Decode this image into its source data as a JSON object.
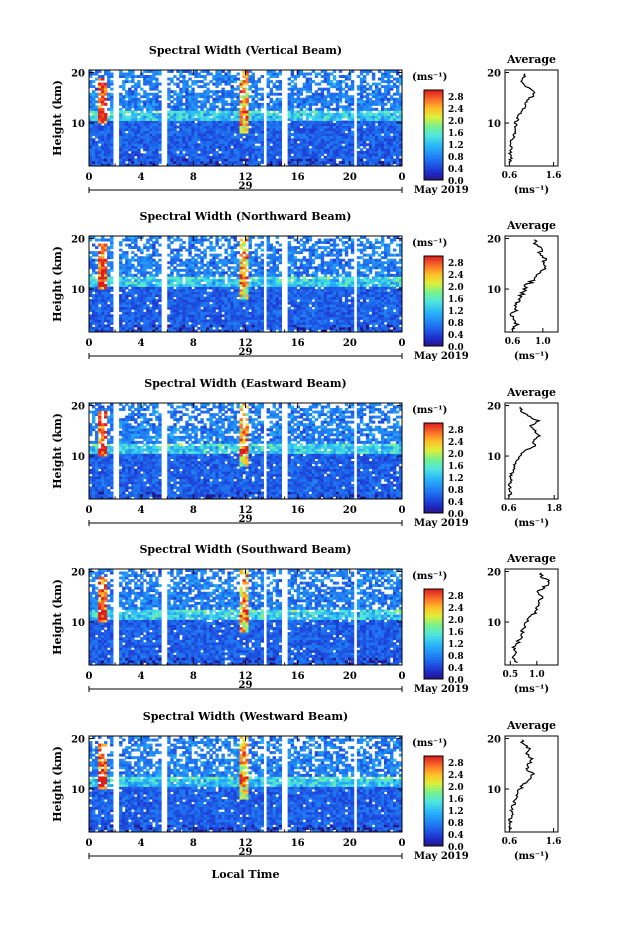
{
  "figure": {
    "xaxis_title": "Local Time",
    "date_label": "May 2019",
    "colorbar_unit": "(ms⁻¹)",
    "average_title": "Average",
    "average_xlabel": "(ms⁻¹)",
    "height_label": "Height (km)"
  },
  "chart_data": [
    {
      "type": "heatmap",
      "title": "Spectral Width (Vertical Beam)",
      "ylabel": "Height (km)",
      "xlabel": "Local Time",
      "x_ticks": [
        "0",
        "4",
        "8",
        "12",
        "16",
        "20",
        "0"
      ],
      "x_range_hours": [
        0,
        24
      ],
      "y_ticks": [
        "10",
        "20"
      ],
      "ylim_km": [
        1.5,
        20.5
      ],
      "day_label": "29",
      "colorbar": {
        "unit": "(ms⁻¹)",
        "ticks": [
          "0.0",
          "0.4",
          "0.8",
          "1.2",
          "1.6",
          "2.0",
          "2.4",
          "2.8"
        ],
        "range": [
          0,
          3.0
        ]
      },
      "data_gaps_hours": [
        [
          1.8,
          2.2
        ],
        [
          5.6,
          5.9
        ],
        [
          13.3,
          13.6
        ],
        [
          14.8,
          15.2
        ],
        [
          20.2,
          20.5
        ]
      ],
      "average_profile": {
        "title": "Average",
        "xlabel": "(ms⁻¹)",
        "x_ticks": [
          "0.6",
          "1.6"
        ],
        "xlim": [
          0.5,
          1.7
        ],
        "y_ticks": [
          "10",
          "20"
        ],
        "heights_km": [
          2,
          3,
          4,
          5,
          6,
          7,
          8,
          9,
          10,
          11,
          12,
          13,
          14,
          15,
          16,
          17,
          18,
          19
        ],
        "values": [
          0.62,
          0.64,
          0.62,
          0.66,
          0.64,
          0.68,
          0.7,
          0.72,
          0.74,
          0.78,
          0.86,
          0.92,
          0.98,
          1.08,
          1.2,
          1.0,
          0.88,
          0.92
        ]
      }
    },
    {
      "type": "heatmap",
      "title": "Spectral Width (Northward Beam)",
      "ylabel": "Height (km)",
      "xlabel": "Local Time",
      "x_ticks": [
        "0",
        "4",
        "8",
        "12",
        "16",
        "20",
        "0"
      ],
      "x_range_hours": [
        0,
        24
      ],
      "y_ticks": [
        "10",
        "20"
      ],
      "ylim_km": [
        1.5,
        20.5
      ],
      "day_label": "29",
      "colorbar": {
        "unit": "(ms⁻¹)",
        "ticks": [
          "0.0",
          "0.4",
          "0.8",
          "1.2",
          "1.6",
          "2.0",
          "2.4",
          "2.8"
        ],
        "range": [
          0,
          3.0
        ]
      },
      "data_gaps_hours": [
        [
          1.8,
          2.2
        ],
        [
          5.6,
          5.9
        ],
        [
          13.3,
          13.6
        ],
        [
          14.8,
          15.2
        ],
        [
          20.2,
          20.5
        ]
      ],
      "average_profile": {
        "title": "Average",
        "xlabel": "(ms⁻¹)",
        "x_ticks": [
          "0.6",
          "1.0"
        ],
        "xlim": [
          0.5,
          1.2
        ],
        "y_ticks": [
          "10",
          "20"
        ],
        "heights_km": [
          2,
          3,
          4,
          5,
          6,
          7,
          8,
          9,
          10,
          11,
          12,
          13,
          14,
          15,
          16,
          17,
          18,
          19
        ],
        "values": [
          0.62,
          0.66,
          0.64,
          0.6,
          0.64,
          0.66,
          0.7,
          0.72,
          0.76,
          0.8,
          0.9,
          0.96,
          1.02,
          0.98,
          1.05,
          0.96,
          1.0,
          0.92
        ]
      }
    },
    {
      "type": "heatmap",
      "title": "Spectral Width (Eastward Beam)",
      "ylabel": "Height (km)",
      "xlabel": "Local Time",
      "x_ticks": [
        "0",
        "4",
        "8",
        "12",
        "16",
        "20",
        "0"
      ],
      "x_range_hours": [
        0,
        24
      ],
      "y_ticks": [
        "10",
        "20"
      ],
      "ylim_km": [
        1.5,
        20.5
      ],
      "day_label": "29",
      "colorbar": {
        "unit": "(ms⁻¹)",
        "ticks": [
          "0.0",
          "0.4",
          "0.8",
          "1.2",
          "1.6",
          "2.0",
          "2.4",
          "2.8"
        ],
        "range": [
          0,
          3.0
        ]
      },
      "data_gaps_hours": [
        [
          1.8,
          2.2
        ],
        [
          5.6,
          5.9
        ],
        [
          13.3,
          13.6
        ],
        [
          14.8,
          15.2
        ],
        [
          20.2,
          20.5
        ]
      ],
      "average_profile": {
        "title": "Average",
        "xlabel": "(ms⁻¹)",
        "x_ticks": [
          "0.6",
          "1.8"
        ],
        "xlim": [
          0.5,
          1.9
        ],
        "y_ticks": [
          "10",
          "20"
        ],
        "heights_km": [
          2,
          3,
          4,
          5,
          6,
          7,
          8,
          9,
          10,
          11,
          12,
          13,
          14,
          15,
          16,
          17,
          18,
          19
        ],
        "values": [
          0.62,
          0.66,
          0.62,
          0.64,
          0.66,
          0.7,
          0.74,
          0.8,
          0.9,
          1.0,
          1.3,
          1.25,
          1.4,
          1.3,
          1.2,
          1.38,
          1.1,
          0.92
        ]
      }
    },
    {
      "type": "heatmap",
      "title": "Spectral Width (Southward Beam)",
      "ylabel": "Height (km)",
      "xlabel": "Local Time",
      "x_ticks": [
        "0",
        "4",
        "8",
        "12",
        "16",
        "20",
        "0"
      ],
      "x_range_hours": [
        0,
        24
      ],
      "y_ticks": [
        "10",
        "20"
      ],
      "ylim_km": [
        1.5,
        20.5
      ],
      "day_label": "29",
      "colorbar": {
        "unit": "(ms⁻¹)",
        "ticks": [
          "0.0",
          "0.4",
          "0.8",
          "1.2",
          "1.6",
          "2.0",
          "2.4",
          "2.8"
        ],
        "range": [
          0,
          3.0
        ]
      },
      "data_gaps_hours": [
        [
          1.8,
          2.2
        ],
        [
          5.6,
          5.9
        ],
        [
          13.3,
          13.6
        ],
        [
          14.8,
          15.2
        ],
        [
          20.2,
          20.5
        ]
      ],
      "average_profile": {
        "title": "Average",
        "xlabel": "(ms⁻¹)",
        "x_ticks": [
          "0.5",
          "1.0"
        ],
        "xlim": [
          0.4,
          1.4
        ],
        "y_ticks": [
          "10",
          "20"
        ],
        "heights_km": [
          2,
          3,
          4,
          5,
          6,
          7,
          8,
          9,
          10,
          11,
          12,
          13,
          14,
          15,
          16,
          17,
          18,
          19
        ],
        "values": [
          0.6,
          0.56,
          0.62,
          0.58,
          0.64,
          0.7,
          0.72,
          0.78,
          0.82,
          0.88,
          0.98,
          1.02,
          1.05,
          1.1,
          1.0,
          1.15,
          1.25,
          1.08
        ]
      }
    },
    {
      "type": "heatmap",
      "title": "Spectral Width (Westward Beam)",
      "ylabel": "Height (km)",
      "xlabel": "Local Time",
      "x_ticks": [
        "0",
        "4",
        "8",
        "12",
        "16",
        "20",
        "0"
      ],
      "x_range_hours": [
        0,
        24
      ],
      "y_ticks": [
        "10",
        "20"
      ],
      "ylim_km": [
        1.5,
        20.5
      ],
      "day_label": "29",
      "colorbar": {
        "unit": "(ms⁻¹)",
        "ticks": [
          "0.0",
          "0.4",
          "0.8",
          "1.2",
          "1.6",
          "2.0",
          "2.4",
          "2.8"
        ],
        "range": [
          0,
          3.0
        ]
      },
      "data_gaps_hours": [
        [
          1.8,
          2.2
        ],
        [
          5.6,
          5.9
        ],
        [
          13.3,
          13.6
        ],
        [
          14.8,
          15.2
        ],
        [
          20.2,
          20.5
        ]
      ],
      "average_profile": {
        "title": "Average",
        "xlabel": "(ms⁻¹)",
        "x_ticks": [
          "0.6",
          "1.6"
        ],
        "xlim": [
          0.5,
          1.7
        ],
        "y_ticks": [
          "10",
          "20"
        ],
        "heights_km": [
          2,
          3,
          4,
          5,
          6,
          7,
          8,
          9,
          10,
          11,
          12,
          13,
          14,
          15,
          16,
          17,
          18,
          19
        ],
        "values": [
          0.62,
          0.64,
          0.62,
          0.66,
          0.64,
          0.7,
          0.72,
          0.78,
          0.84,
          0.92,
          1.08,
          1.12,
          1.0,
          1.05,
          1.1,
          1.0,
          1.04,
          0.9
        ]
      }
    }
  ]
}
